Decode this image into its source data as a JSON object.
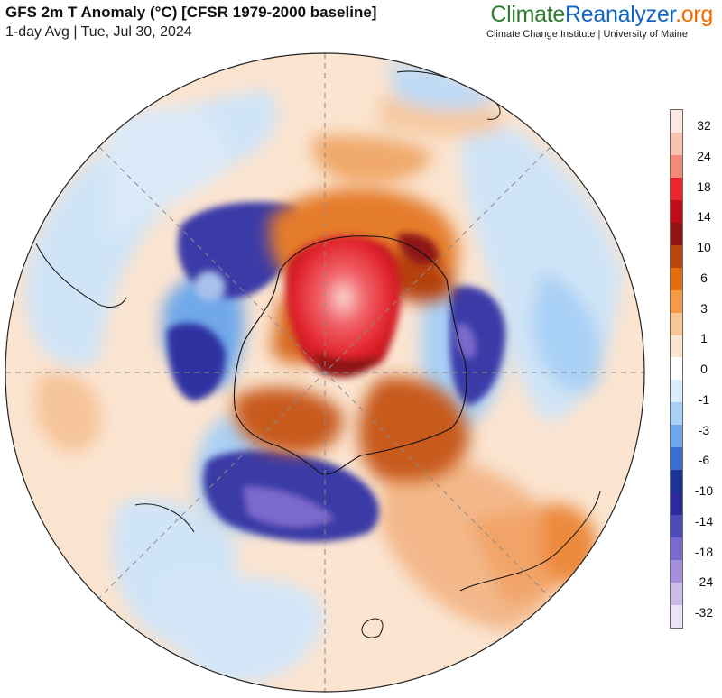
{
  "header": {
    "title": "GFS 2m T Anomaly (°C) [CFSR 1979-2000 baseline]",
    "subtitle": "1-day Avg | Tue, Jul 30, 2024"
  },
  "brand": {
    "part1": "Climate",
    "part2": "Reanalyzer",
    "part3": ".org",
    "tagline": "Climate Change Institute | University of Maine"
  },
  "map": {
    "projection": "south-polar orthographic",
    "region": "Antarctica / Southern Hemisphere"
  },
  "colorbar": {
    "labels": [
      "32",
      "24",
      "18",
      "14",
      "10",
      "6",
      "3",
      "1",
      "0",
      "-1",
      "-3",
      "-6",
      "-10",
      "-14",
      "-18",
      "-24",
      "-32"
    ],
    "colors": [
      "#fce9e4",
      "#f9c3b2",
      "#f28a7a",
      "#e8262b",
      "#bf0d1a",
      "#8e1613",
      "#b8460b",
      "#e0700f",
      "#f59a48",
      "#f8c596",
      "#fbe6d2",
      "#ffffff",
      "#dceefb",
      "#a9d0f5",
      "#6fa8ea",
      "#3a6fcf",
      "#1c3594",
      "#2c2a9c",
      "#4d4bb6",
      "#7b6bcd",
      "#a68fdb",
      "#cbbbe9",
      "#ece3f5"
    ]
  }
}
